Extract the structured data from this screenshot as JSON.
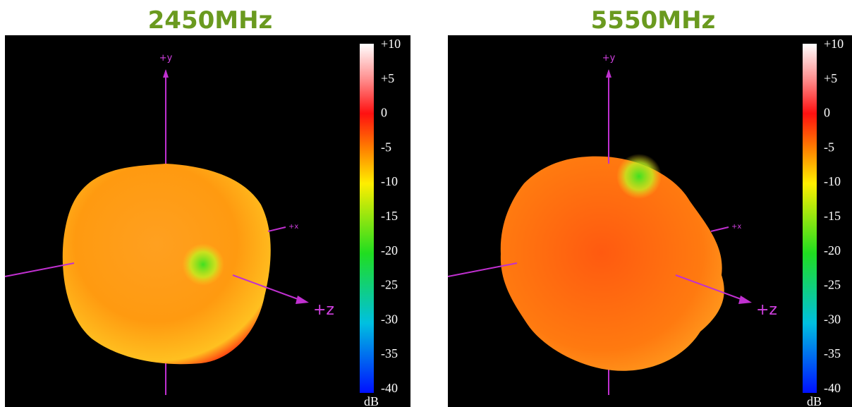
{
  "panels": [
    {
      "title": "2450MHz",
      "axes": {
        "y": "+y",
        "x": "+x",
        "z": "+z"
      },
      "colorbar": {
        "ticks": [
          "+10",
          "+5",
          "0",
          "-5",
          "-10",
          "-15",
          "-20",
          "-25",
          "-30",
          "-35",
          "-40"
        ],
        "unit": "dB"
      }
    },
    {
      "title": "5550MHz",
      "axes": {
        "y": "+y",
        "x": "+x",
        "z": "+z"
      },
      "colorbar": {
        "ticks": [
          "+10",
          "+5",
          "0",
          "-5",
          "-10",
          "-15",
          "-20",
          "-25",
          "-30",
          "-35",
          "-40"
        ],
        "unit": "dB"
      }
    }
  ]
}
